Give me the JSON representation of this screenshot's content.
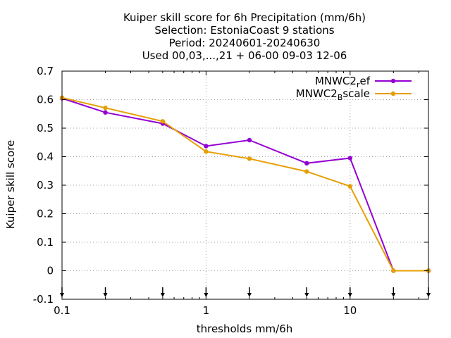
{
  "chart_data": {
    "type": "line",
    "title_lines": [
      "Kuiper skill score  for 6h Precipitation (mm/6h)",
      "Selection: EstoniaCoast      9 stations",
      "Period: 20240601-20240630",
      "Used 00,03,...,21 + 06-00 09-03 12-06"
    ],
    "xlabel": "thresholds mm/6h",
    "ylabel": "Kuiper skill score",
    "x_scale": "log",
    "xlim": [
      0.1,
      35
    ],
    "ylim": [
      -0.1,
      0.7
    ],
    "x_ticks": [
      {
        "value": 0.1,
        "label": "0.1"
      },
      {
        "value": 1,
        "label": "1"
      },
      {
        "value": 10,
        "label": "10"
      }
    ],
    "y_ticks": [
      {
        "value": -0.1,
        "label": "-0.1"
      },
      {
        "value": 0,
        "label": "0"
      },
      {
        "value": 0.1,
        "label": "0.1"
      },
      {
        "value": 0.2,
        "label": "0.2"
      },
      {
        "value": 0.3,
        "label": "0.3"
      },
      {
        "value": 0.4,
        "label": "0.4"
      },
      {
        "value": 0.5,
        "label": "0.5"
      },
      {
        "value": 0.6,
        "label": "0.6"
      },
      {
        "value": 0.7,
        "label": "0.7"
      }
    ],
    "threshold_markers": [
      0.1,
      0.2,
      0.5,
      1,
      2,
      5,
      10,
      20,
      35
    ],
    "grid": true,
    "legend_position": "top-right",
    "series": [
      {
        "name": "MNWC2",
        "name_sub": "r",
        "name_rest": "ef",
        "color": "#9400d3",
        "x": [
          0.1,
          0.2,
          0.5,
          1,
          2,
          5,
          10,
          20,
          35
        ],
        "values": [
          0.605,
          0.555,
          0.516,
          0.437,
          0.458,
          0.377,
          0.395,
          0.0,
          0.0
        ]
      },
      {
        "name": "MNWC2",
        "name_sub": "B",
        "name_rest": "scale",
        "color": "#e69f00",
        "x": [
          0.1,
          0.2,
          0.5,
          1,
          2,
          5,
          10,
          20,
          35
        ],
        "values": [
          0.607,
          0.571,
          0.524,
          0.418,
          0.393,
          0.348,
          0.296,
          0.0,
          0.0
        ]
      }
    ]
  }
}
